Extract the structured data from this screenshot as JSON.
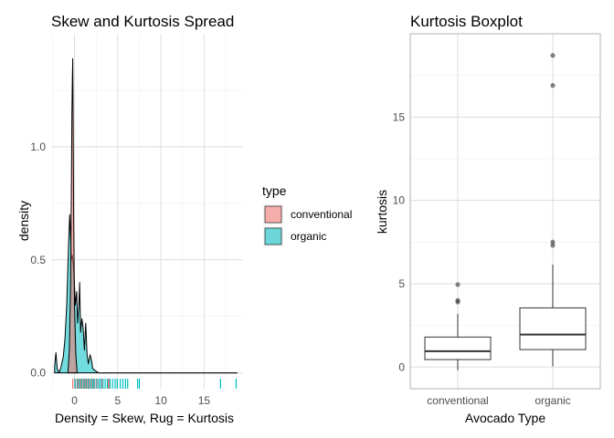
{
  "colors": {
    "conventional": "#F8766D",
    "organic": "#00BFC4"
  },
  "chart_data": [
    {
      "type": "area",
      "title": "Skew and Kurtosis Spread",
      "xlabel": "Density = Skew, Rug = Kurtosis",
      "ylabel": "density",
      "xlim": [
        -2.7,
        19.5
      ],
      "ylim": [
        -0.07,
        1.5
      ],
      "x_ticks": [
        0,
        5,
        10,
        15
      ],
      "x_tick_labels": [
        "0",
        "5",
        "10",
        "15"
      ],
      "y_ticks": [
        0.0,
        0.5,
        1.0
      ],
      "y_tick_labels": [
        "0.0",
        "0.5",
        "1.0"
      ],
      "grid": true,
      "legend_position": "right",
      "legend": {
        "title": "type",
        "entries": [
          {
            "name": "conventional",
            "color": "#F8766D"
          },
          {
            "name": "organic",
            "color": "#00BFC4"
          }
        ]
      },
      "series": [
        {
          "name": "conventional",
          "color": "#F8766D",
          "density": [
            [
              -0.75,
              0.0
            ],
            [
              -0.6,
              0.1
            ],
            [
              -0.45,
              0.4
            ],
            [
              -0.35,
              0.85
            ],
            [
              -0.3,
              1.15
            ],
            [
              -0.25,
              1.3
            ],
            [
              -0.2,
              1.39
            ],
            [
              -0.15,
              1.1
            ],
            [
              -0.1,
              0.7
            ],
            [
              0.0,
              0.3
            ],
            [
              0.15,
              0.08
            ],
            [
              0.3,
              0.0
            ]
          ],
          "rug": [
            -0.2,
            0.1,
            0.3,
            0.45,
            0.6,
            0.75,
            0.9,
            1.05,
            1.2,
            1.3,
            1.45,
            1.6,
            1.7,
            1.9,
            2.05,
            2.2,
            2.5,
            2.8,
            3.2,
            3.9,
            4.0,
            4.95
          ]
        },
        {
          "name": "organic",
          "color": "#00BFC4",
          "density": [
            [
              -2.3,
              0.03
            ],
            [
              -2.15,
              0.09
            ],
            [
              -2.0,
              0.02
            ],
            [
              -1.8,
              0.0
            ],
            [
              -1.6,
              0.02
            ],
            [
              -1.3,
              0.07
            ],
            [
              -1.1,
              0.15
            ],
            [
              -0.9,
              0.3
            ],
            [
              -0.7,
              0.55
            ],
            [
              -0.55,
              0.7
            ],
            [
              -0.45,
              0.6
            ],
            [
              -0.35,
              0.5
            ],
            [
              -0.25,
              0.52
            ],
            [
              -0.1,
              0.46
            ],
            [
              0.1,
              0.3
            ],
            [
              0.25,
              0.36
            ],
            [
              0.35,
              0.22
            ],
            [
              0.5,
              0.3
            ],
            [
              0.6,
              0.4
            ],
            [
              0.7,
              0.18
            ],
            [
              0.85,
              0.24
            ],
            [
              1.0,
              0.2
            ],
            [
              1.15,
              0.1
            ],
            [
              1.3,
              0.22
            ],
            [
              1.45,
              0.08
            ],
            [
              1.6,
              0.04
            ],
            [
              1.8,
              0.08
            ],
            [
              2.0,
              0.05
            ],
            [
              2.1,
              0.02
            ],
            [
              2.4,
              0.01
            ],
            [
              2.8,
              0.0
            ],
            [
              4.0,
              0.0
            ],
            [
              8.0,
              0.0
            ],
            [
              18.8,
              0.0
            ]
          ],
          "rug": [
            0.05,
            0.35,
            0.6,
            0.85,
            1.1,
            1.35,
            1.6,
            1.85,
            2.1,
            2.3,
            2.6,
            2.85,
            3.05,
            3.3,
            3.55,
            3.8,
            4.1,
            4.4,
            4.7,
            4.95,
            5.3,
            5.6,
            5.9,
            6.15,
            7.3,
            7.5,
            16.9,
            18.7
          ]
        }
      ]
    },
    {
      "type": "box",
      "title": "Kurtosis Boxplot",
      "xlabel": "Avocado Type",
      "ylabel": "kurtosis",
      "categories": [
        "conventional",
        "organic"
      ],
      "ylim": [
        -1.3,
        20.0
      ],
      "y_ticks": [
        0,
        5,
        10,
        15
      ],
      "y_tick_labels": [
        "0",
        "5",
        "10",
        "15"
      ],
      "grid": true,
      "boxes": [
        {
          "category": "conventional",
          "min": -0.2,
          "q1": 0.45,
          "median": 0.95,
          "q3": 1.8,
          "max": 3.2,
          "outliers": [
            3.9,
            4.0,
            4.95
          ]
        },
        {
          "category": "organic",
          "min": 0.05,
          "q1": 1.05,
          "median": 1.95,
          "q3": 3.55,
          "max": 6.15,
          "outliers": [
            7.3,
            7.5,
            16.9,
            18.7
          ]
        }
      ]
    }
  ]
}
